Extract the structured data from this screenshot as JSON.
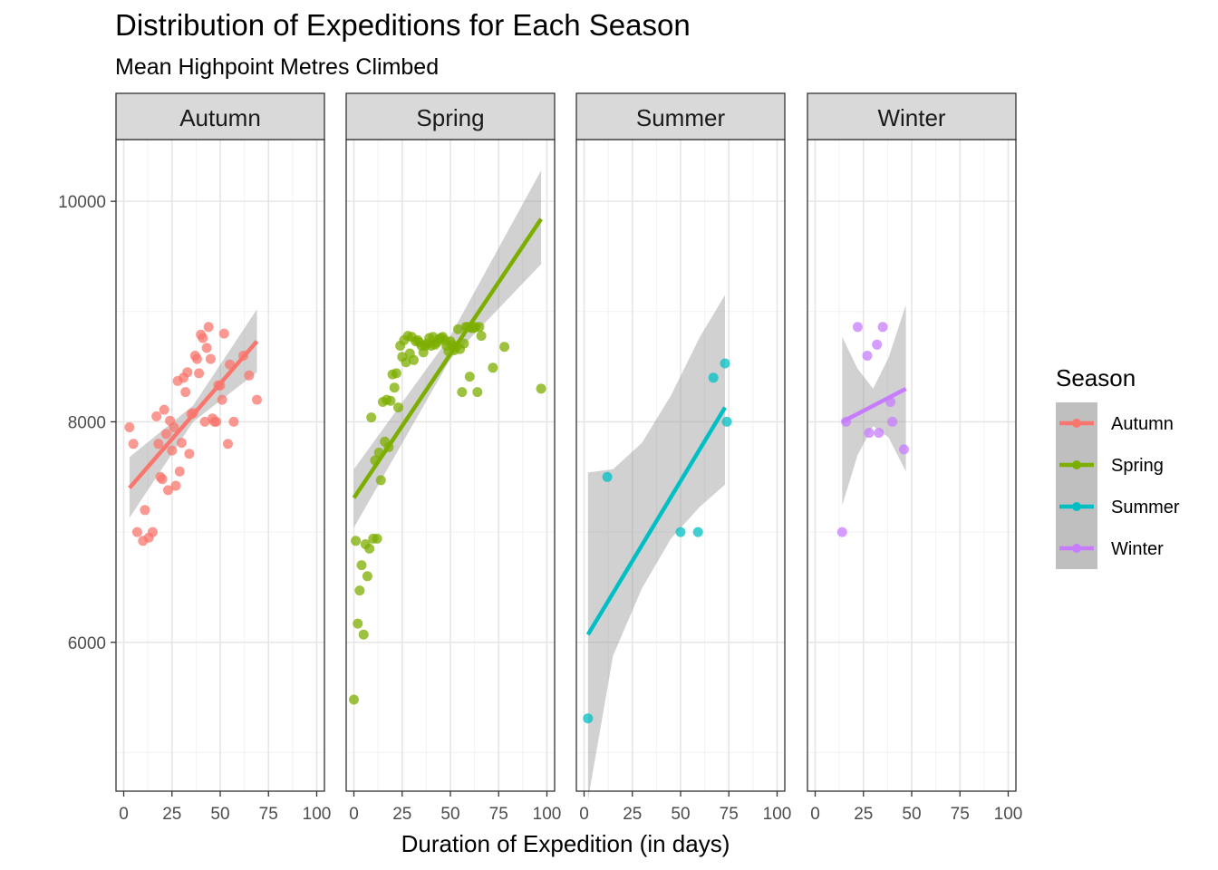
{
  "chart_data": {
    "type": "scatter",
    "title": "Distribution of Expeditions for Each Season",
    "subtitle": "Mean Highpoint Metres Climbed",
    "xlabel": "Duration of Expedition (in days)",
    "ylabel": "",
    "xlim": [
      -4,
      104
    ],
    "ylim": [
      4650,
      10560
    ],
    "x_ticks": [
      "0",
      "25",
      "50",
      "75",
      "100"
    ],
    "x_tick_values": [
      0,
      25,
      50,
      75,
      100
    ],
    "y_ticks": [
      "6000",
      "8000",
      "10000"
    ],
    "y_tick_values": [
      6000,
      8000,
      10000
    ],
    "grid": true,
    "legend": {
      "title": "Season",
      "placement": "right"
    },
    "facets": [
      {
        "name": "Autumn",
        "color": "#F8766D",
        "fit": {
          "x": [
            3,
            69
          ],
          "y": [
            7400,
            8730
          ]
        },
        "band": {
          "x": [
            3,
            36,
            69
          ],
          "lower": [
            7130,
            8000,
            8450
          ],
          "upper": [
            7680,
            8150,
            9020
          ]
        },
        "points": [
          [
            3,
            7950
          ],
          [
            5,
            7800
          ],
          [
            7,
            7000
          ],
          [
            10,
            6920
          ],
          [
            11,
            7200
          ],
          [
            13,
            6950
          ],
          [
            15,
            7000
          ],
          [
            17,
            8050
          ],
          [
            18,
            7800
          ],
          [
            19,
            7500
          ],
          [
            20,
            7480
          ],
          [
            21,
            8110
          ],
          [
            22,
            7890
          ],
          [
            23,
            7380
          ],
          [
            24,
            8010
          ],
          [
            25,
            7740
          ],
          [
            26,
            7950
          ],
          [
            27,
            7420
          ],
          [
            28,
            8370
          ],
          [
            29,
            7550
          ],
          [
            30,
            7810
          ],
          [
            31,
            8400
          ],
          [
            32,
            8270
          ],
          [
            33,
            8450
          ],
          [
            34,
            7710
          ],
          [
            35,
            8070
          ],
          [
            36,
            8080
          ],
          [
            37,
            8600
          ],
          [
            38,
            8570
          ],
          [
            39,
            8440
          ],
          [
            40,
            8790
          ],
          [
            41,
            8760
          ],
          [
            42,
            8000
          ],
          [
            43,
            8670
          ],
          [
            44,
            8860
          ],
          [
            45,
            8570
          ],
          [
            46,
            8030
          ],
          [
            47,
            8000
          ],
          [
            48,
            8000
          ],
          [
            49,
            8330
          ],
          [
            50,
            8330
          ],
          [
            51,
            8200
          ],
          [
            52,
            8800
          ],
          [
            54,
            7800
          ],
          [
            55,
            8520
          ],
          [
            57,
            8000
          ],
          [
            62,
            8600
          ],
          [
            65,
            8420
          ],
          [
            69,
            8200
          ]
        ]
      },
      {
        "name": "Spring",
        "color": "#7CAE00",
        "fit": {
          "x": [
            0,
            97
          ],
          "y": [
            7310,
            9840
          ]
        },
        "band": {
          "x": [
            0,
            50,
            97
          ],
          "lower": [
            7040,
            8570,
            9430
          ],
          "upper": [
            7570,
            8780,
            10280
          ]
        },
        "points": [
          [
            0,
            5480
          ],
          [
            1,
            6920
          ],
          [
            2,
            6170
          ],
          [
            3,
            6470
          ],
          [
            4,
            6700
          ],
          [
            5,
            6070
          ],
          [
            6,
            6890
          ],
          [
            7,
            6600
          ],
          [
            8,
            6850
          ],
          [
            9,
            8040
          ],
          [
            10,
            6940
          ],
          [
            11,
            7650
          ],
          [
            12,
            6940
          ],
          [
            13,
            7720
          ],
          [
            14,
            7470
          ],
          [
            15,
            8180
          ],
          [
            16,
            7820
          ],
          [
            17,
            8200
          ],
          [
            18,
            7770
          ],
          [
            19,
            8190
          ],
          [
            20,
            8430
          ],
          [
            21,
            8310
          ],
          [
            22,
            8440
          ],
          [
            23,
            8130
          ],
          [
            24,
            8690
          ],
          [
            25,
            8590
          ],
          [
            26,
            8740
          ],
          [
            27,
            8540
          ],
          [
            28,
            8780
          ],
          [
            29,
            8620
          ],
          [
            30,
            8770
          ],
          [
            31,
            8560
          ],
          [
            32,
            8730
          ],
          [
            33,
            8740
          ],
          [
            34,
            8720
          ],
          [
            35,
            8690
          ],
          [
            36,
            8630
          ],
          [
            37,
            8690
          ],
          [
            38,
            8710
          ],
          [
            39,
            8760
          ],
          [
            40,
            8690
          ],
          [
            41,
            8770
          ],
          [
            42,
            8700
          ],
          [
            43,
            8720
          ],
          [
            44,
            8750
          ],
          [
            45,
            8760
          ],
          [
            46,
            8770
          ],
          [
            47,
            8740
          ],
          [
            48,
            8690
          ],
          [
            49,
            8640
          ],
          [
            50,
            8730
          ],
          [
            51,
            8700
          ],
          [
            52,
            8650
          ],
          [
            53,
            8680
          ],
          [
            54,
            8840
          ],
          [
            55,
            8660
          ],
          [
            56,
            8270
          ],
          [
            57,
            8710
          ],
          [
            58,
            8860
          ],
          [
            59,
            8860
          ],
          [
            60,
            8410
          ],
          [
            61,
            8850
          ],
          [
            62,
            8850
          ],
          [
            63,
            8860
          ],
          [
            64,
            8270
          ],
          [
            65,
            8860
          ],
          [
            66,
            8780
          ],
          [
            72,
            8490
          ],
          [
            78,
            8680
          ],
          [
            97,
            8300
          ]
        ]
      },
      {
        "name": "Summer",
        "color": "#00BFC4",
        "fit": {
          "x": [
            2,
            73
          ],
          "y": [
            6070,
            8130
          ]
        },
        "band": {
          "x": [
            2,
            15,
            30,
            45,
            60,
            73
          ],
          "lower": [
            4570,
            5880,
            6490,
            6940,
            7230,
            7430
          ],
          "upper": [
            7540,
            7570,
            7810,
            8240,
            8770,
            9150
          ]
        },
        "points": [
          [
            2,
            5310
          ],
          [
            12,
            7500
          ],
          [
            50,
            7000
          ],
          [
            59,
            7000
          ],
          [
            67,
            8400
          ],
          [
            73,
            8530
          ],
          [
            74,
            8000
          ]
        ]
      },
      {
        "name": "Winter",
        "color": "#C77CFF",
        "fit": {
          "x": [
            14,
            47
          ],
          "y": [
            8000,
            8300
          ]
        },
        "band": {
          "x": [
            14,
            22,
            30,
            38,
            47
          ],
          "lower": [
            7240,
            7700,
            7960,
            7860,
            7550
          ],
          "upper": [
            8770,
            8480,
            8300,
            8580,
            9060
          ]
        },
        "points": [
          [
            14,
            7000
          ],
          [
            16,
            8000
          ],
          [
            22,
            8860
          ],
          [
            27,
            8600
          ],
          [
            28,
            7900
          ],
          [
            32,
            8700
          ],
          [
            33,
            7900
          ],
          [
            35,
            8860
          ],
          [
            39,
            8180
          ],
          [
            40,
            8000
          ],
          [
            46,
            7750
          ]
        ]
      }
    ]
  }
}
